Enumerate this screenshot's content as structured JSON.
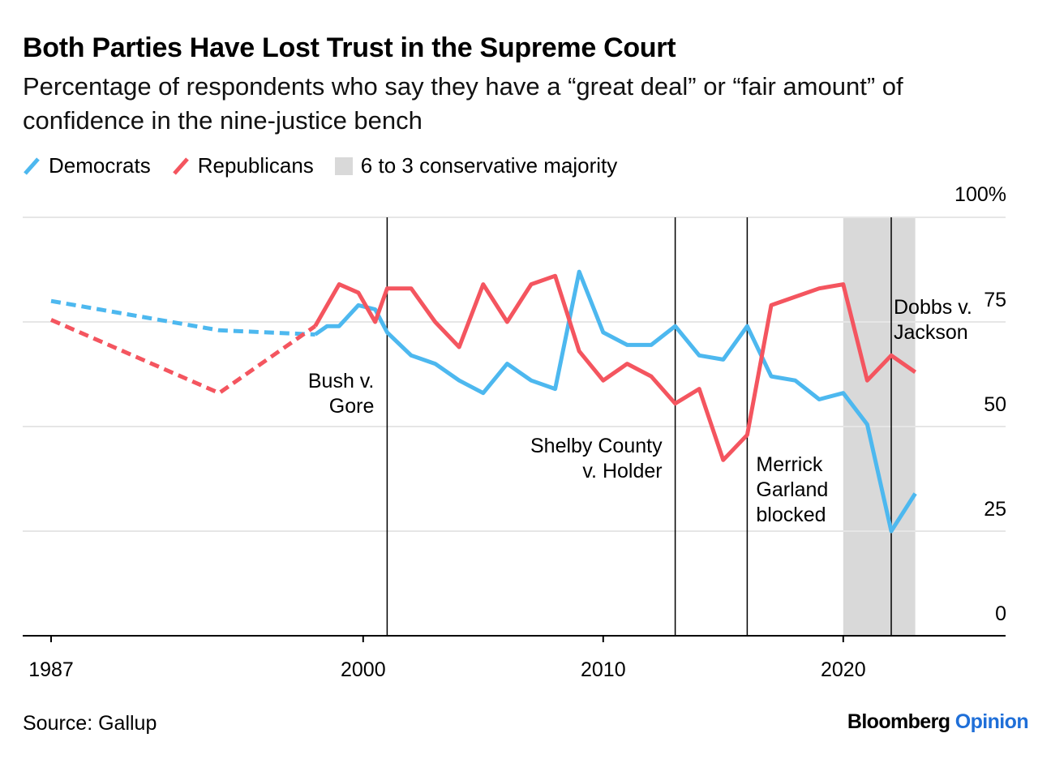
{
  "header": {
    "title": "Both Parties Have Lost Trust in the Supreme Court",
    "subtitle": "Percentage of respondents who say they have a “great deal” or “fair amount” of confidence in the nine-justice bench"
  },
  "legend": {
    "democrats": "Democrats",
    "republicans": "Republicans",
    "shading": "6 to 3 conservative majority"
  },
  "footer": {
    "source": "Source: Gallup",
    "brand_main": "Bloomberg",
    "brand_sub": "Opinion"
  },
  "chart_data": {
    "type": "line",
    "title": "Both Parties Have Lost Trust in the Supreme Court",
    "xlabel": "",
    "ylabel": "",
    "xlim": [
      1986,
      2026.5
    ],
    "ylim": [
      0,
      100
    ],
    "x_ticks": [
      {
        "value": 1987,
        "label": "1987"
      },
      {
        "value": 2000,
        "label": "2000"
      },
      {
        "value": 2010,
        "label": "2010"
      },
      {
        "value": 2020,
        "label": "2020"
      }
    ],
    "y_ticks": [
      {
        "value": 0,
        "label": "0"
      },
      {
        "value": 25,
        "label": "25"
      },
      {
        "value": 50,
        "label": "50"
      },
      {
        "value": 75,
        "label": "75"
      },
      {
        "value": 100,
        "label": "100%"
      }
    ],
    "colors": {
      "democrats": "#4db8ef",
      "republicans": "#f4555f",
      "shading": "#d9d9d9",
      "grid": "#e6e6e6",
      "axis": "#000000"
    },
    "shaded_regions": [
      {
        "name": "6 to 3 conservative majority",
        "start": 2020,
        "end": 2023
      }
    ],
    "series": [
      {
        "name": "Democrats",
        "color": "#4db8ef",
        "dashed_until": 1998,
        "points": [
          [
            1987,
            80
          ],
          [
            1994,
            73
          ],
          [
            1998,
            72
          ],
          [
            1998.5,
            74
          ],
          [
            1999,
            74
          ],
          [
            1999.8,
            79
          ],
          [
            2000.5,
            78
          ],
          [
            2001,
            72.5
          ],
          [
            2002,
            67
          ],
          [
            2003,
            65
          ],
          [
            2004,
            61
          ],
          [
            2005,
            58
          ],
          [
            2006,
            65
          ],
          [
            2007,
            61
          ],
          [
            2008,
            59
          ],
          [
            2009,
            87
          ],
          [
            2010,
            72.5
          ],
          [
            2011,
            69.5
          ],
          [
            2012,
            69.5
          ],
          [
            2013,
            74
          ],
          [
            2014,
            67
          ],
          [
            2015,
            66
          ],
          [
            2016,
            74
          ],
          [
            2017,
            62
          ],
          [
            2018,
            61
          ],
          [
            2019,
            56.5
          ],
          [
            2020,
            58
          ],
          [
            2021,
            50.5
          ],
          [
            2022,
            25
          ],
          [
            2023,
            34
          ]
        ]
      },
      {
        "name": "Republicans",
        "color": "#f4555f",
        "dashed_until": 1998,
        "points": [
          [
            1987,
            75.5
          ],
          [
            1994,
            58
          ],
          [
            1998,
            74
          ],
          [
            1999,
            84
          ],
          [
            1999.8,
            82
          ],
          [
            2000.5,
            75
          ],
          [
            2001,
            83
          ],
          [
            2002,
            83
          ],
          [
            2003,
            75
          ],
          [
            2004,
            69
          ],
          [
            2005,
            84
          ],
          [
            2006,
            75
          ],
          [
            2007,
            84
          ],
          [
            2008,
            86
          ],
          [
            2009,
            68
          ],
          [
            2010,
            61
          ],
          [
            2011,
            65
          ],
          [
            2012,
            62
          ],
          [
            2013,
            55.5
          ],
          [
            2014,
            59
          ],
          [
            2015,
            42
          ],
          [
            2016,
            48
          ],
          [
            2017,
            79
          ],
          [
            2018,
            81
          ],
          [
            2019,
            83
          ],
          [
            2020,
            84
          ],
          [
            2021,
            61
          ],
          [
            2022,
            67
          ],
          [
            2023,
            63
          ]
        ]
      }
    ],
    "annotations": [
      {
        "year": 2001,
        "lines": [
          "Bush v.",
          "Gore"
        ],
        "align": "end"
      },
      {
        "year": 2013,
        "lines": [
          "Shelby County",
          "v. Holder"
        ],
        "align": "end"
      },
      {
        "year": 2016,
        "lines": [
          "Merrick",
          "Garland",
          "blocked"
        ],
        "align": "start"
      },
      {
        "year": 2022,
        "lines": [
          "Dobbs v.",
          "Jackson"
        ],
        "align": "start"
      }
    ]
  }
}
